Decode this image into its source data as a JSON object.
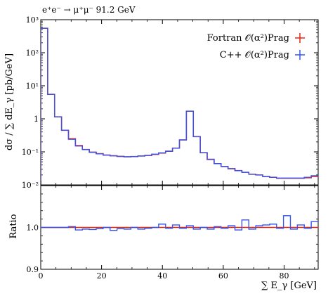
{
  "chart_data": {
    "type": "line",
    "title": "e⁺e⁻ → μ⁺μ⁻ 91.2 GeV",
    "xlabel": "∑ E_γ [GeV]",
    "xlim": [
      0,
      91.2
    ],
    "bin_width": 2.28,
    "legend_position": "top-right",
    "colors": {
      "fortran": "#ee2211",
      "cpp": "#3355ee"
    },
    "main": {
      "ylabel": "dσ / ∑ dE_γ [pb/GeV]",
      "yscale": "log",
      "ylim": [
        0.01,
        1000
      ],
      "y_ticks": [
        "10⁻²",
        "10⁻¹",
        "1",
        "10¹",
        "10²",
        "10³"
      ],
      "y_tick_values": [
        0.01,
        0.1,
        1,
        10,
        100,
        1000
      ],
      "series": [
        {
          "name": "Fortran 𝒪(α²)Prag",
          "color": "#ee2211",
          "values": [
            550,
            5.5,
            1.15,
            0.45,
            0.25,
            0.155,
            0.118,
            0.098,
            0.088,
            0.08,
            0.076,
            0.073,
            0.071,
            0.072,
            0.075,
            0.078,
            0.084,
            0.092,
            0.104,
            0.13,
            0.23,
            1.7,
            0.29,
            0.094,
            0.059,
            0.044,
            0.036,
            0.031,
            0.027,
            0.024,
            0.021,
            0.02,
            0.018,
            0.017,
            0.016,
            0.016,
            0.016,
            0.016,
            0.0165,
            0.018
          ]
        },
        {
          "name": "C++ 𝒪(α²)Prag",
          "color": "#3355ee",
          "values": [
            550,
            5.5,
            1.15,
            0.45,
            0.24,
            0.15,
            0.117,
            0.097,
            0.087,
            0.08,
            0.076,
            0.073,
            0.071,
            0.072,
            0.075,
            0.078,
            0.085,
            0.093,
            0.105,
            0.13,
            0.23,
            1.7,
            0.29,
            0.095,
            0.06,
            0.044,
            0.036,
            0.031,
            0.027,
            0.024,
            0.021,
            0.02,
            0.018,
            0.017,
            0.016,
            0.016,
            0.016,
            0.016,
            0.017,
            0.019
          ]
        }
      ]
    },
    "ratio": {
      "ylabel": "Ratio",
      "ylim": [
        0.9,
        1.1
      ],
      "y_ticks": [
        "0.9",
        "1.0"
      ],
      "y_tick_values": [
        0.9,
        1.0
      ],
      "reference_value": 1.0,
      "values": [
        1.0,
        1.0,
        1.0,
        1.0,
        1.002,
        0.994,
        0.996,
        0.995,
        0.997,
        1.0,
        0.993,
        0.997,
        0.996,
        1.0,
        0.996,
        0.998,
        1.0,
        1.008,
        0.998,
        1.006,
        0.998,
        1.004,
        0.996,
        1.0,
        0.996,
        1.002,
        0.998,
        1.004,
        0.994,
        1.018,
        0.996,
        1.004,
        1.006,
        1.008,
        0.998,
        1.028,
        0.996,
        1.006,
        0.998,
        1.014
      ]
    },
    "x_ticks": [
      "0",
      "20",
      "40",
      "60",
      "80"
    ],
    "x_tick_values": [
      0,
      20,
      40,
      60,
      80
    ]
  }
}
